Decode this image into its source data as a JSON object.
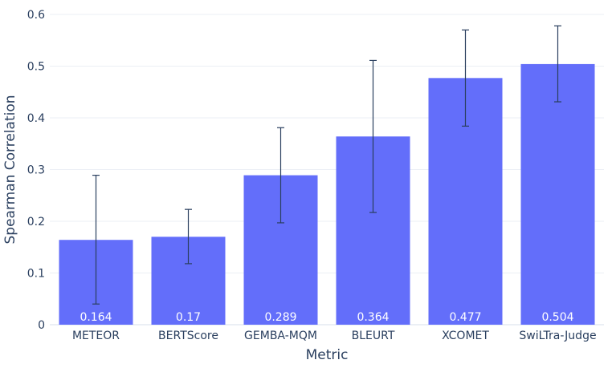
{
  "chart_data": {
    "type": "bar",
    "xlabel": "Metric",
    "ylabel": "Spearman Correlation",
    "categories": [
      "METEOR",
      "BERTScore",
      "GEMBA-MQM",
      "BLEURT",
      "XCOMET",
      "SwiLTra-Judge"
    ],
    "values": [
      0.164,
      0.17,
      0.289,
      0.364,
      0.477,
      0.504
    ],
    "value_labels": [
      "0.164",
      "0.17",
      "0.289",
      "0.364",
      "0.477",
      "0.504"
    ],
    "error_low": [
      0.04,
      0.118,
      0.197,
      0.217,
      0.384,
      0.431
    ],
    "error_high": [
      0.289,
      0.223,
      0.381,
      0.511,
      0.57,
      0.578
    ],
    "ylim": [
      0,
      0.6
    ],
    "yticks": [
      0,
      0.1,
      0.2,
      0.3,
      0.4,
      0.5,
      0.6
    ],
    "ytick_labels": [
      "0",
      "0.1",
      "0.2",
      "0.3",
      "0.4",
      "0.5",
      "0.6"
    ],
    "bar_color": "#636efa",
    "error_color": "#2a3f5f",
    "grid": true
  }
}
